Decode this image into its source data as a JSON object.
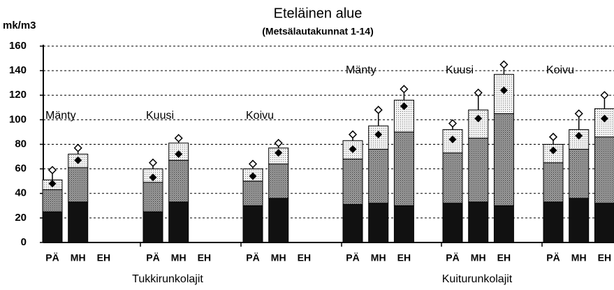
{
  "chart_data": {
    "type": "bar",
    "title": "Eteläinen alue",
    "subtitle": "(Metsälautakunnat 1-14)",
    "y_label": "mk/m3",
    "ylim": [
      0,
      160
    ],
    "yticks": [
      0,
      20,
      40,
      60,
      80,
      100,
      120,
      140,
      160
    ],
    "grid": true,
    "categories": [
      "PÄ",
      "MH",
      "EH",
      "PÄ",
      "MH",
      "EH",
      "PÄ",
      "MH",
      "EH",
      "PÄ",
      "MH",
      "EH",
      "PÄ",
      "MH",
      "EH",
      "PÄ",
      "MH",
      "EH"
    ],
    "group_labels": [
      "Mänty",
      "Kuusi",
      "Koivu",
      "Mänty",
      "Kuusi",
      "Koivu"
    ],
    "sections": [
      "Tukkirunkolajit",
      "Kuiturunkolajit"
    ],
    "series": [
      {
        "color": "#111111",
        "values": [
          25,
          33,
          null,
          25,
          33,
          null,
          30,
          36,
          null,
          31,
          32,
          30,
          32,
          33,
          30,
          33,
          36,
          32
        ]
      },
      {
        "color": "#8a8a8a",
        "values": [
          18,
          28,
          null,
          24,
          34,
          null,
          20,
          28,
          null,
          37,
          44,
          60,
          41,
          52,
          75,
          32,
          40,
          54
        ]
      },
      {
        "color": "#e4e4e4",
        "values": [
          8,
          11,
          null,
          11,
          14,
          null,
          10,
          13,
          null,
          15,
          19,
          26,
          19,
          23,
          32,
          15,
          16,
          23
        ]
      }
    ],
    "points": [
      48,
      67,
      null,
      53,
      72,
      null,
      54,
      73,
      null,
      76,
      88,
      111,
      84,
      101,
      124,
      75,
      87,
      101
    ],
    "upper": [
      59,
      77,
      null,
      65,
      85,
      null,
      64,
      81,
      null,
      88,
      108,
      125,
      97,
      122,
      145,
      86,
      105,
      120
    ]
  }
}
